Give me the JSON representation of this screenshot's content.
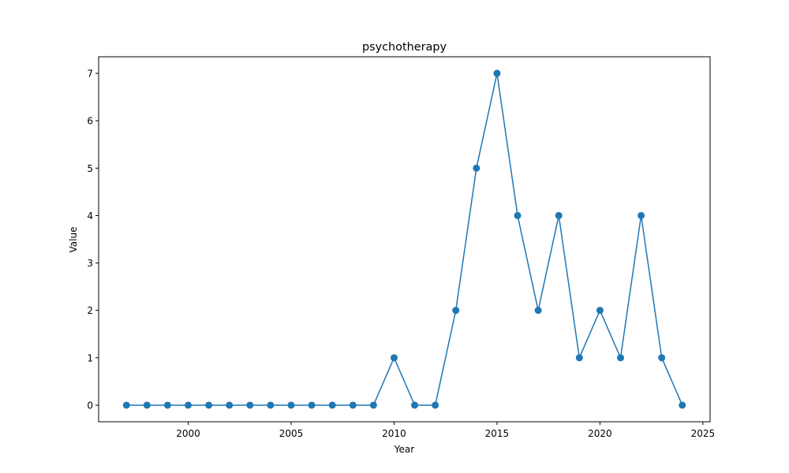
{
  "chart_data": {
    "type": "line",
    "title": "psychotherapy",
    "xlabel": "Year",
    "ylabel": "Value",
    "xlim": [
      1995.65,
      2025.35
    ],
    "ylim": [
      -0.35,
      7.35
    ],
    "xticks": [
      2000,
      2005,
      2010,
      2015,
      2020,
      2025
    ],
    "yticks": [
      0,
      1,
      2,
      3,
      4,
      5,
      6,
      7
    ],
    "grid": false,
    "color": "#1f77b4",
    "marker": "circle",
    "series": [
      {
        "x": [
          1997,
          1998,
          1999,
          2000,
          2001,
          2002,
          2003,
          2004,
          2005,
          2006,
          2007,
          2008,
          2009,
          2010,
          2011,
          2012,
          2013,
          2014,
          2015,
          2016,
          2017,
          2018,
          2019,
          2020,
          2021,
          2022,
          2023,
          2024
        ],
        "values": [
          0,
          0,
          0,
          0,
          0,
          0,
          0,
          0,
          0,
          0,
          0,
          0,
          0,
          1,
          0,
          0,
          2,
          5,
          7,
          4,
          2,
          4,
          1,
          2,
          1,
          4,
          1,
          0
        ]
      }
    ]
  }
}
